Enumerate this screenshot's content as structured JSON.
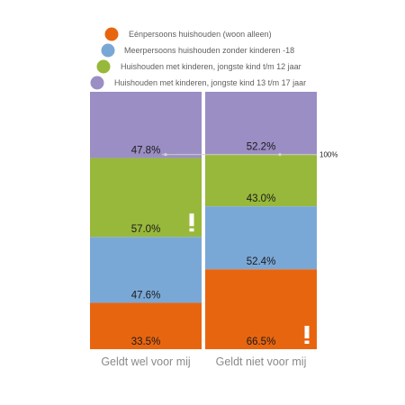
{
  "chart_data": {
    "type": "bar",
    "stacked": true,
    "categories": [
      "Geldt wel voor mij",
      "Geldt niet voor mij"
    ],
    "series": [
      {
        "name": "Eénpersoons huishouden (woon alleen)",
        "color": "#e8650f",
        "values": [
          33.5,
          66.5
        ]
      },
      {
        "name": "Meerpersoons huishouden zonder kinderen -18",
        "color": "#7aa8d6",
        "values": [
          47.6,
          52.4
        ]
      },
      {
        "name": "Huishouden met kinderen, jongste kind t/m 12 jaar",
        "color": "#98b83b",
        "values": [
          57.0,
          43.0
        ]
      },
      {
        "name": "Huishouden met kinderen, jongste kind 13 t/m 17 jaar",
        "color": "#9b8ec4",
        "values": [
          47.8,
          52.2
        ]
      }
    ],
    "value_labels": [
      [
        "33.5%",
        "66.5%"
      ],
      [
        "47.6%",
        "52.4%"
      ],
      [
        "57.0%",
        "43.0%"
      ],
      [
        "47.8%",
        "52.2%"
      ]
    ],
    "reference_label": "100%",
    "alert_marker": "!",
    "alert_marks": [
      {
        "series": 2,
        "category": 0
      },
      {
        "series": 0,
        "category": 1
      }
    ],
    "legend_position": "top",
    "grid": false
  }
}
